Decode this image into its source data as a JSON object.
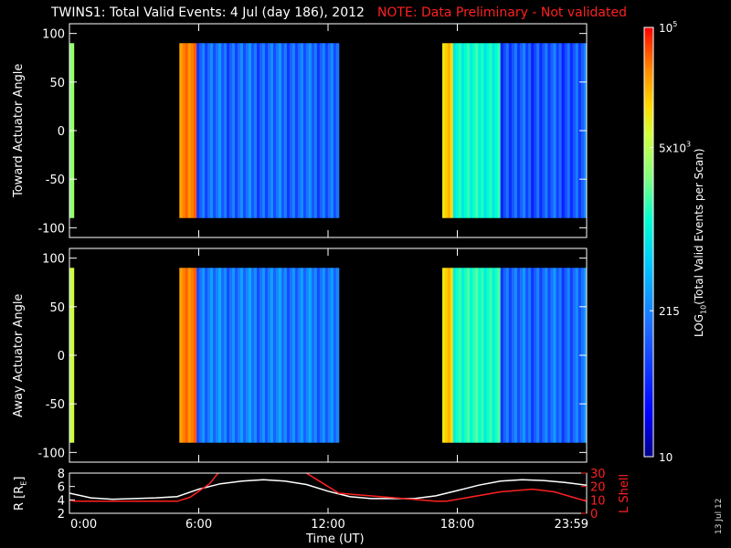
{
  "header": {
    "title": "TWINS1: Total Valid Events:  4 Jul (day 186), 2012",
    "note": "NOTE: Data Preliminary - Not validated"
  },
  "colors": {
    "note": "#ff2020",
    "axes": "#ffffff",
    "orbit_r": "#ffffff",
    "orbit_lshell": "#ff2020",
    "colormap": [
      "#00008a",
      "#0000ff",
      "#1e6bff",
      "#00c8ff",
      "#00ffd2",
      "#80ff80",
      "#d2ff3c",
      "#ffd700",
      "#ff8c00",
      "#ff3c00",
      "#ff0000"
    ]
  },
  "chart_data": [
    {
      "type": "heatmap",
      "ylabel": "Toward Actuator Angle",
      "ylim": [
        -110,
        110
      ],
      "yticks": [
        100,
        50,
        0,
        -50,
        -100
      ],
      "xlim": [
        0,
        24
      ],
      "angle_range": [
        -90,
        90
      ],
      "segments": [
        {
          "start": 0.0,
          "end": 0.2,
          "level": 0.55
        },
        {
          "start": 5.1,
          "end": 5.9,
          "level": 0.82
        },
        {
          "start": 5.9,
          "end": 12.5,
          "level": 0.2
        },
        {
          "start": 17.3,
          "end": 17.8,
          "level": 0.72
        },
        {
          "start": 17.8,
          "end": 20.0,
          "level": 0.4
        },
        {
          "start": 20.0,
          "end": 24.0,
          "level": 0.18
        }
      ]
    },
    {
      "type": "heatmap",
      "ylabel": "Away Actuator Angle",
      "ylim": [
        -110,
        110
      ],
      "yticks": [
        100,
        50,
        0,
        -50,
        -100
      ],
      "xlim": [
        0,
        24
      ],
      "angle_range": [
        -90,
        90
      ],
      "segments": [
        {
          "start": 0.0,
          "end": 0.2,
          "level": 0.62
        },
        {
          "start": 5.1,
          "end": 5.9,
          "level": 0.82
        },
        {
          "start": 5.9,
          "end": 12.5,
          "level": 0.22
        },
        {
          "start": 17.3,
          "end": 17.8,
          "level": 0.72
        },
        {
          "start": 17.8,
          "end": 20.0,
          "level": 0.42
        },
        {
          "start": 20.0,
          "end": 24.0,
          "level": 0.2
        }
      ]
    },
    {
      "type": "line",
      "ylabel_left": "R [R",
      "ylabel_left_sub": "E",
      "ylabel_left_close": "]",
      "ylabel_right": "L Shell",
      "ylim_left": [
        2,
        8
      ],
      "yticks_left": [
        2,
        4,
        6,
        8
      ],
      "ylim_right": [
        0,
        30
      ],
      "yticks_right": [
        0,
        10,
        20,
        30
      ],
      "xlabel": "Time (UT)",
      "xlim": [
        0,
        24
      ],
      "xticks": [
        0,
        6,
        12,
        18,
        24
      ],
      "xticklabels": [
        "0:00",
        "6:00",
        "12:00",
        "18:00",
        "23:59"
      ],
      "series": [
        {
          "axis": "left",
          "color": "#ffffff",
          "x": [
            0,
            1,
            2,
            3,
            4,
            5,
            6,
            7,
            8,
            9,
            10,
            11,
            12,
            13,
            14,
            15,
            16,
            17,
            18,
            19,
            20,
            21,
            22,
            23,
            24
          ],
          "y": [
            5.0,
            4.3,
            4.1,
            4.2,
            4.3,
            4.5,
            5.6,
            6.4,
            6.8,
            7.0,
            6.8,
            6.3,
            5.3,
            4.5,
            4.2,
            4.2,
            4.2,
            4.6,
            5.4,
            6.2,
            6.8,
            7.0,
            6.9,
            6.6,
            6.2
          ]
        },
        {
          "axis": "right",
          "color": "#ff2020",
          "x": [
            0,
            0.2,
            5.0,
            5.6,
            6.5,
            7.0,
            10.8,
            11.6,
            12.5,
            17.0,
            17.5,
            20.0,
            21.5,
            22.5,
            24.0
          ],
          "y": [
            10,
            9,
            9,
            12,
            22,
            32,
            32,
            24,
            15,
            9,
            9,
            16,
            18,
            16,
            9
          ]
        }
      ]
    }
  ],
  "colorbar": {
    "label": "LOG",
    "label_sub": "10",
    "label_rest": "(Total Valid  Events per Scan)",
    "ticks": [
      {
        "base": "10",
        "exp": "5",
        "frac": 1.0
      },
      {
        "base": "5x10",
        "exp": "3",
        "frac": 0.72
      },
      {
        "base": "215",
        "exp": "",
        "frac": 0.34
      },
      {
        "base": "10",
        "exp": "",
        "frac": 0.0
      }
    ]
  },
  "datestamp": "13 Jul 12"
}
